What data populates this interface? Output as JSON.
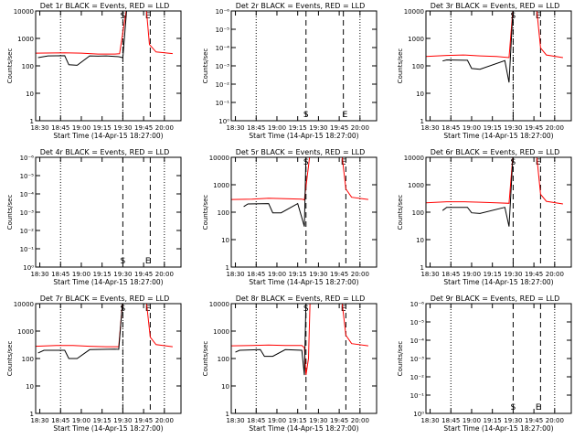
{
  "figure": {
    "xlabel": "Start Time (14-Apr-15 18:27:00)",
    "ylabel": "Counts/sec",
    "x_tick_labels": [
      "18:30",
      "18:45",
      "19:00",
      "19:15",
      "19:30",
      "19:45",
      "20:00"
    ],
    "colors": {
      "events": "#000000",
      "lld": "#ff0000",
      "axes": "#000000"
    }
  },
  "chart_data": [
    {
      "type": "line",
      "title": "Det 1r BLACK = Events, RED = LLD",
      "xlim": [
        18.45,
        20.2
      ],
      "ylim": [
        1,
        10000
      ],
      "yscale": "log",
      "y_tick_labels": [
        "1",
        "10",
        "100",
        "1000",
        "10000"
      ],
      "dotted_x": [
        18.75,
        19.5,
        20.0
      ],
      "dashed_x": [
        19.5,
        19.83
      ],
      "S_x": 19.5,
      "E_x": 19.8,
      "series": [
        {
          "name": "LLD",
          "x": [
            18.45,
            18.8,
            19.0,
            19.2,
            19.4,
            19.46,
            19.55,
            19.78,
            19.82,
            19.9,
            20.1
          ],
          "values": [
            290,
            300,
            290,
            270,
            270,
            275,
            15000,
            15000,
            600,
            320,
            280
          ]
        },
        {
          "name": "Events",
          "x": [
            18.48,
            18.6,
            18.8,
            18.85,
            18.95,
            19.1,
            19.2,
            19.3,
            19.45,
            19.5,
            19.55
          ],
          "values": [
            200,
            230,
            235,
            110,
            105,
            230,
            225,
            230,
            215,
            200,
            15000
          ]
        }
      ]
    },
    {
      "type": "line",
      "title": "Det 2r BLACK = Events, RED = LLD",
      "xlim": [
        18.45,
        20.2
      ],
      "ylim": [
        1,
        1e-06
      ],
      "yscale": "log",
      "y_tick_labels": [
        "10^0",
        "10^-1",
        "10^-2",
        "10^-3",
        "10^-4",
        "10^-5",
        "10^-6"
      ],
      "dotted_x": [
        18.75,
        20.0
      ],
      "dashed_x": [
        19.35,
        19.8
      ],
      "S_x": 19.35,
      "E_x": 19.82,
      "series": []
    },
    {
      "type": "line",
      "title": "Det 3r BLACK = Events, RED = LLD",
      "xlim": [
        18.45,
        20.2
      ],
      "ylim": [
        1,
        10000
      ],
      "yscale": "log",
      "y_tick_labels": [
        "1",
        "10",
        "100",
        "1000",
        "10000"
      ],
      "dotted_x": [
        18.75,
        19.5,
        20.0
      ],
      "dashed_x": [
        19.5,
        19.83
      ],
      "S_x": 19.5,
      "E_x": 19.8,
      "series": [
        {
          "name": "LLD",
          "x": [
            18.45,
            18.7,
            18.9,
            19.1,
            19.3,
            19.45,
            19.5,
            19.78,
            19.83,
            19.9,
            20.1
          ],
          "values": [
            220,
            240,
            250,
            230,
            220,
            200,
            15000,
            15000,
            450,
            250,
            200
          ]
        },
        {
          "name": "Events",
          "x": [
            18.65,
            18.7,
            18.95,
            19.0,
            19.1,
            19.4,
            19.45,
            19.5
          ],
          "values": [
            150,
            165,
            160,
            80,
            75,
            155,
            25,
            15000
          ]
        }
      ]
    },
    {
      "type": "line",
      "title": "Det 4r BLACK = Events, RED = LLD",
      "xlim": [
        18.45,
        20.2
      ],
      "ylim": [
        1,
        1e-06
      ],
      "yscale": "log",
      "y_tick_labels": [
        "10^0",
        "10^-1",
        "10^-2",
        "10^-3",
        "10^-4",
        "10^-5",
        "10^-6"
      ],
      "dotted_x": [
        18.75,
        20.0
      ],
      "dashed_x": [
        19.5,
        19.83
      ],
      "S_x": 19.5,
      "E_x": 19.8,
      "series": []
    },
    {
      "type": "line",
      "title": "Det 5r BLACK = Events, RED = LLD",
      "xlim": [
        18.45,
        20.2
      ],
      "ylim": [
        1,
        10000
      ],
      "yscale": "log",
      "y_tick_labels": [
        "1",
        "10",
        "100",
        "1000",
        "10000"
      ],
      "dotted_x": [
        18.75,
        20.0
      ],
      "dashed_x": [
        19.35,
        19.83
      ],
      "S_x": 19.35,
      "E_x": 19.8,
      "series": [
        {
          "name": "LLD",
          "x": [
            18.45,
            18.7,
            18.9,
            19.1,
            19.3,
            19.33,
            19.4,
            19.78,
            19.83,
            19.9,
            20.1
          ],
          "values": [
            290,
            300,
            320,
            310,
            300,
            280,
            15000,
            15000,
            700,
            350,
            290
          ]
        },
        {
          "name": "Events",
          "x": [
            18.6,
            18.65,
            18.9,
            18.95,
            19.05,
            19.25,
            19.33,
            19.35
          ],
          "values": [
            160,
            200,
            205,
            95,
            95,
            205,
            30,
            15000
          ]
        }
      ]
    },
    {
      "type": "line",
      "title": "Det 6r BLACK = Events, RED = LLD",
      "xlim": [
        18.45,
        20.2
      ],
      "ylim": [
        1,
        10000
      ],
      "yscale": "log",
      "y_tick_labels": [
        "1",
        "10",
        "100",
        "1000",
        "10000"
      ],
      "dotted_x": [
        18.75,
        20.0
      ],
      "dashed_x": [
        19.5,
        19.83
      ],
      "S_x": 19.5,
      "E_x": 19.8,
      "series": [
        {
          "name": "LLD",
          "x": [
            18.45,
            18.7,
            18.9,
            19.1,
            19.3,
            19.45,
            19.5,
            19.78,
            19.83,
            19.9,
            20.1
          ],
          "values": [
            220,
            240,
            240,
            230,
            220,
            210,
            15000,
            15000,
            450,
            250,
            200
          ]
        },
        {
          "name": "Events",
          "x": [
            18.65,
            18.7,
            18.95,
            19.0,
            19.1,
            19.4,
            19.45,
            19.5
          ],
          "values": [
            115,
            150,
            150,
            95,
            90,
            150,
            30,
            15000
          ]
        }
      ]
    },
    {
      "type": "line",
      "title": "Det 7r BLACK = Events, RED = LLD",
      "xlim": [
        18.45,
        20.2
      ],
      "ylim": [
        1,
        10000
      ],
      "yscale": "log",
      "y_tick_labels": [
        "1",
        "10",
        "100",
        "1000",
        "10000"
      ],
      "dotted_x": [
        18.75,
        19.5,
        20.0
      ],
      "dashed_x": [
        19.5,
        19.83
      ],
      "S_x": 19.5,
      "E_x": 19.8,
      "series": [
        {
          "name": "LLD",
          "x": [
            18.45,
            18.7,
            18.9,
            19.1,
            19.3,
            19.45,
            19.5,
            19.78,
            19.83,
            19.9,
            20.1
          ],
          "values": [
            280,
            300,
            300,
            280,
            270,
            270,
            15000,
            15000,
            600,
            320,
            270
          ]
        },
        {
          "name": "Events",
          "x": [
            18.48,
            18.55,
            18.8,
            18.85,
            18.95,
            19.1,
            19.4,
            19.45,
            19.5
          ],
          "values": [
            160,
            200,
            200,
            100,
            100,
            210,
            220,
            215,
            15000
          ]
        }
      ]
    },
    {
      "type": "line",
      "title": "Det 8r BLACK = Events, RED = LLD",
      "xlim": [
        18.45,
        20.2
      ],
      "ylim": [
        1,
        10000
      ],
      "yscale": "log",
      "y_tick_labels": [
        "1",
        "10",
        "100",
        "1000",
        "10000"
      ],
      "dotted_x": [
        18.75,
        20.0
      ],
      "dashed_x": [
        19.35,
        19.83
      ],
      "S_x": 19.35,
      "E_x": 19.8,
      "series": [
        {
          "name": "LLD",
          "x": [
            18.45,
            18.7,
            18.9,
            19.1,
            19.3,
            19.33,
            19.35,
            19.38,
            19.4,
            19.78,
            19.83,
            19.9,
            20.1
          ],
          "values": [
            290,
            300,
            310,
            300,
            300,
            250,
            25,
            100,
            15000,
            15000,
            700,
            350,
            290
          ]
        },
        {
          "name": "Events",
          "x": [
            18.5,
            18.55,
            18.8,
            18.85,
            18.95,
            19.1,
            19.3,
            19.33,
            19.35
          ],
          "values": [
            170,
            200,
            210,
            120,
            120,
            210,
            200,
            25,
            15000
          ]
        }
      ]
    },
    {
      "type": "line",
      "title": "Det 9r BLACK = Events, RED = LLD",
      "xlim": [
        18.45,
        20.2
      ],
      "ylim": [
        1,
        1e-06
      ],
      "yscale": "log",
      "y_tick_labels": [
        "10^0",
        "10^-1",
        "10^-2",
        "10^-3",
        "10^-4",
        "10^-5",
        "10^-6"
      ],
      "dotted_x": [
        18.75,
        20.0
      ],
      "dashed_x": [
        19.5,
        19.83
      ],
      "S_x": 19.5,
      "E_x": 19.8,
      "series": []
    }
  ]
}
